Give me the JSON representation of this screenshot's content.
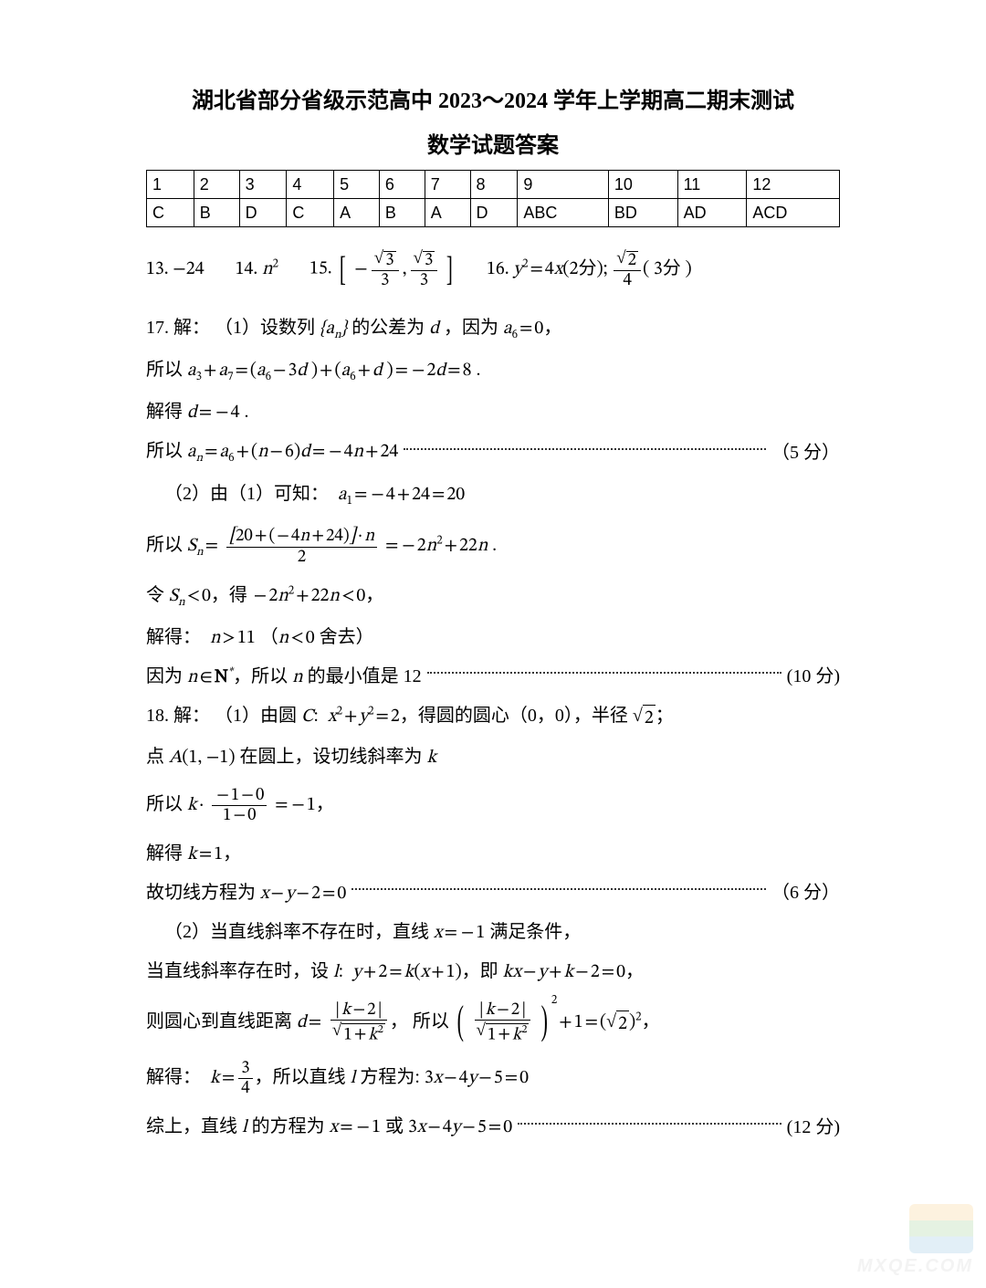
{
  "title": "湖北省部分省级示范高中 2023～2024 学年上学期高二期末测试",
  "subtitle": "数学试题答案",
  "answer_table": {
    "rows": [
      [
        "1",
        "2",
        "3",
        "4",
        "5",
        "6",
        "7",
        "8",
        "9",
        "10",
        "11",
        "12"
      ],
      [
        "C",
        "B",
        "D",
        "C",
        "A",
        "B",
        "A",
        "D",
        "ABC",
        "BD",
        "AD",
        "ACD"
      ]
    ],
    "border_color": "#000000",
    "font_family_cells": "Arial",
    "font_size_cells": 18
  },
  "fill_blanks": {
    "q13_prefix": "13.",
    "q13_expr": "−24",
    "q14_prefix": "14.",
    "q14_expr": "n^2",
    "q15_prefix": "15.",
    "q15_interval_left": "−√3 / 3",
    "q15_interval_right": "√3 / 3",
    "q16_prefix": "16.",
    "q16_part1": "y^2 = 4x (2分);",
    "q16_part2": "√2 / 4 (3分)"
  },
  "q17": {
    "head": "17. 解：  （1）设数列 {a_n} 的公差为 d ，因为 a_6 = 0，",
    "line2": "所以 a_3 + a_7 = (a_6 − 3d) + (a_6 + d) = −2d = 8 .",
    "line3": "解得 d = −4 .",
    "line4_pre": "所以 a_n = a_6 + (n − 6) d = −4n + 24",
    "line4_score": "（5 分）",
    "part2_head": "（2）由（1）可知：  a_1 = −4 + 24 = 20",
    "part2_sn": "所以 S_n = [20 + (−4n + 24)]·n / 2 = −2n^2 + 22n .",
    "part2_ineq": "令 S_n < 0，得 −2n^2 + 22n < 0，",
    "part2_sol": "解得：  n > 11 （n < 0 舍去）",
    "part2_final_pre": "因为 n ∈ N*，所以 n 的最小值是 12",
    "part2_score": "(10 分)"
  },
  "q18": {
    "head": "18. 解：  （1）由圆 C:  x^2 + y^2 = 2，得圆的圆心（0，0），半径 √2；",
    "line2": "点 A(1, −1) 在圆上，设切线斜率为 k",
    "line3": "所以 k · (−1 − 0)/(1 − 0) = −1，",
    "line4": "解得 k = 1，",
    "line5_pre": "故切线方程为 x − y − 2 = 0",
    "line5_score": "（6 分）",
    "part2_head": "（2）当直线斜率不存在时，直线 x = −1 满足条件，",
    "part2_line2": "当直线斜率存在时，设 l:  y + 2 = k(x + 1)，即 kx − y + k − 2 = 0，",
    "part2_line3": "则圆心到直线距离 d = |k − 2| / √(1 + k^2)，所以 ( |k − 2| / √(1 + k^2) )^2 + 1 = (√2)^2，",
    "part2_line4": "解得：  k = 3/4，所以直线 l 方程为: 3x − 4y − 5 = 0",
    "part2_final_pre": "综上，直线 l 的方程为 x = −1 或 3x − 4y − 5 = 0",
    "part2_score": "(12 分)"
  },
  "watermark_text": "MXQE.COM",
  "typography": {
    "body_font": "SimSun / Songti",
    "math_font": "Cambria Math / Times",
    "title_fontsize_pt": 18,
    "body_fontsize_pt": 15,
    "text_color": "#000000",
    "background_color": "#ffffff"
  }
}
